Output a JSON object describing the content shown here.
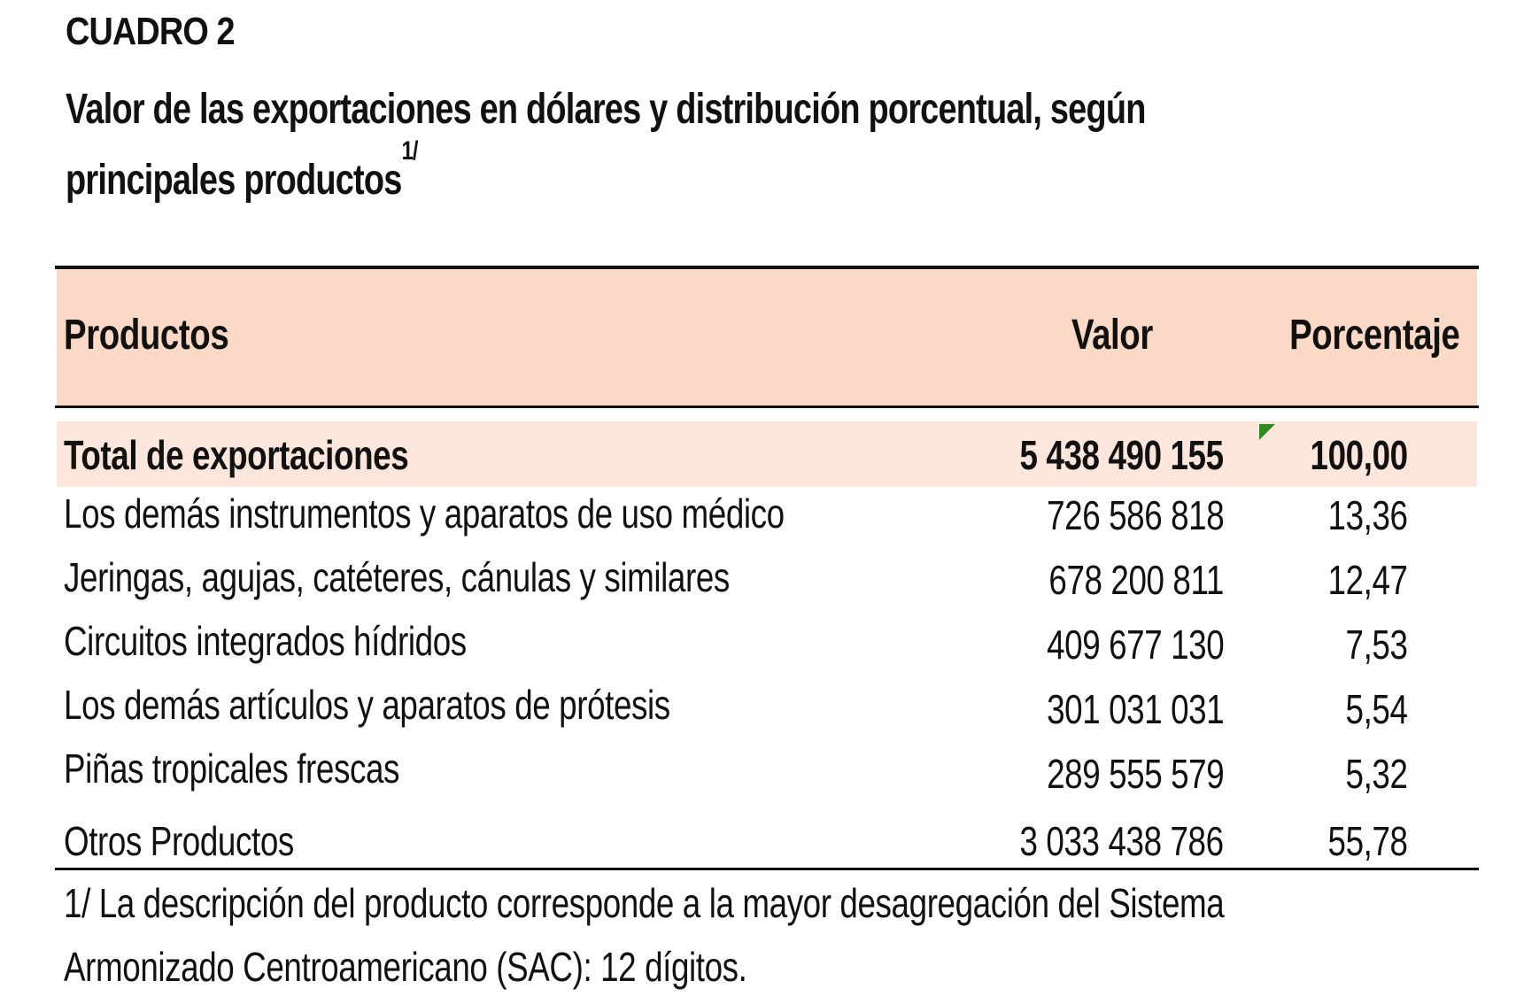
{
  "heading": {
    "label": "CUADRO 2",
    "title_line1": "Valor de las exportaciones en dólares y distribución porcentual, según",
    "title_line2": "principales productos",
    "title_superscript": "1/"
  },
  "table": {
    "columns": [
      "Productos",
      "Valor",
      "Porcentaje"
    ],
    "total": {
      "product": "Total de exportaciones",
      "value": "5 438 490 155",
      "percent": "100,00"
    },
    "rows": [
      {
        "product": "Los demás instrumentos y aparatos de uso médico",
        "value": "726 586 818",
        "percent": "13,36"
      },
      {
        "product": "Jeringas, agujas, catéteres, cánulas y similares",
        "value": "678 200 811",
        "percent": "12,47"
      },
      {
        "product": "Circuitos integrados hídridos",
        "value": "409 677 130",
        "percent": "7,53"
      },
      {
        "product": "Los demás artículos y aparatos de prótesis",
        "value": "301 031 031",
        "percent": "5,54"
      },
      {
        "product": "Piñas tropicales frescas",
        "value": "289 555 579",
        "percent": "5,32"
      },
      {
        "product": "Otros Productos",
        "value": "3 033 438 786",
        "percent": "55,78"
      }
    ]
  },
  "footnote": {
    "line1": "1/ La descripción del producto corresponde a la mayor desagregación del Sistema",
    "line2": "Armonizado Centroamericano (SAC): 12 dígitos."
  },
  "colors": {
    "header_band": "#fbd9c7",
    "total_band": "#fce6db",
    "cell_note_marker": "#2e8b1e"
  }
}
